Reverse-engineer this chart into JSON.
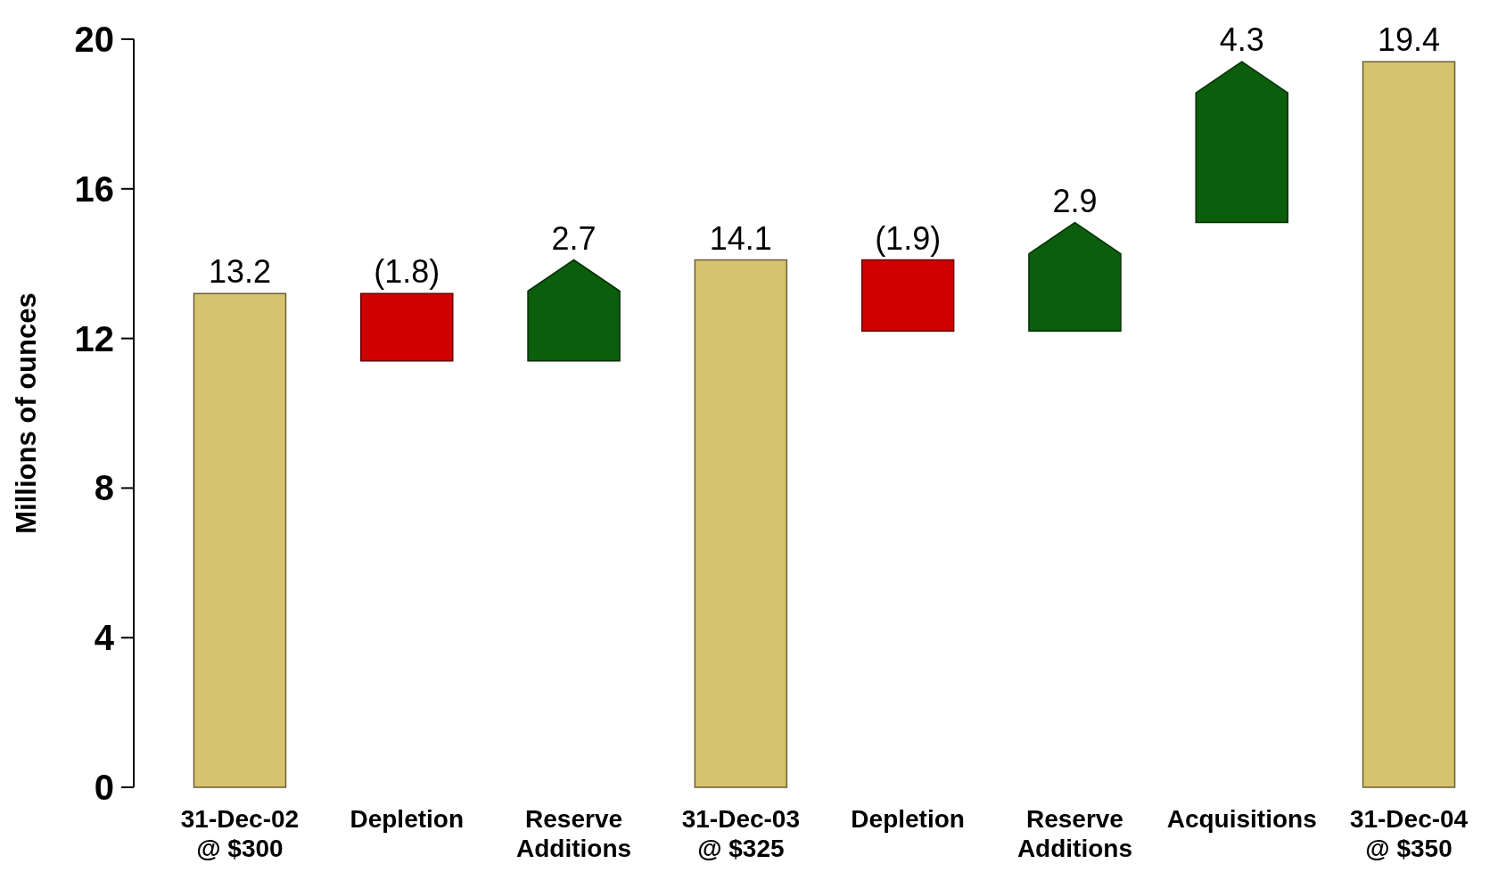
{
  "chart_data": {
    "type": "bar",
    "ylabel": "Millions of ounces",
    "categories": [
      "31-Dec-02\n@ $300",
      "Depletion",
      "Reserve\nAdditions",
      "31-Dec-03\n@ $325",
      "Depletion",
      "Reserve\nAdditions",
      "Acquisitions",
      "31-Dec-04\n@ $350"
    ],
    "values": [
      13.2,
      -1.8,
      2.7,
      14.1,
      -1.9,
      2.9,
      4.3,
      19.4
    ],
    "base": [
      0,
      13.2,
      11.4,
      0,
      14.1,
      12.2,
      15.1,
      0
    ],
    "colors": [
      "#d6c36e",
      "#d00000",
      "#0b5e0b",
      "#d6c36e",
      "#d00000",
      "#0b5e0b",
      "#0b5e0b",
      "#d6c36e"
    ],
    "value_labels": [
      "13.2",
      "(1.8)",
      "2.7",
      "14.1",
      "(1.9)",
      "2.9",
      "4.3",
      "19.4"
    ],
    "ylim": [
      0,
      20
    ],
    "yticks": [
      0,
      4,
      8,
      12,
      16,
      20
    ],
    "grid": false
  }
}
